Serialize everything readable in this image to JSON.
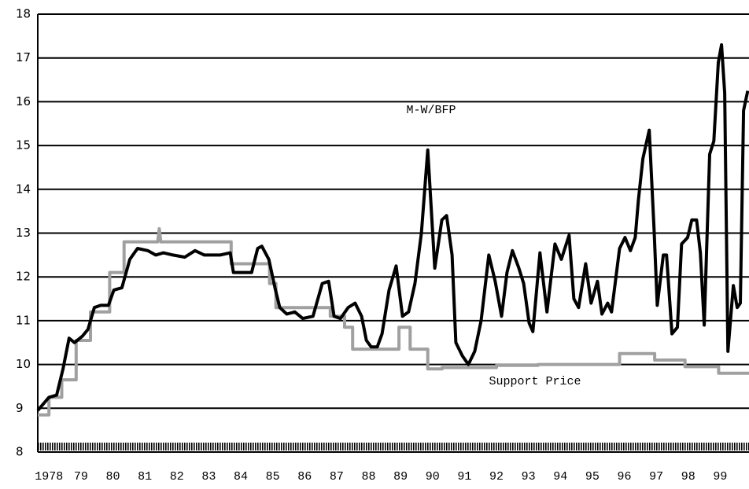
{
  "chart_data": {
    "type": "line",
    "xlim": [
      1977.65,
      1999.9
    ],
    "xticks": [
      {
        "value": 1978,
        "label": "1978"
      },
      {
        "value": 1979,
        "label": "79"
      },
      {
        "value": 1980,
        "label": "80"
      },
      {
        "value": 1981,
        "label": "81"
      },
      {
        "value": 1982,
        "label": "82"
      },
      {
        "value": 1983,
        "label": "83"
      },
      {
        "value": 1984,
        "label": "84"
      },
      {
        "value": 1985,
        "label": "85"
      },
      {
        "value": 1986,
        "label": "86"
      },
      {
        "value": 1987,
        "label": "87"
      },
      {
        "value": 1988,
        "label": "88"
      },
      {
        "value": 1989,
        "label": "89"
      },
      {
        "value": 1990,
        "label": "90"
      },
      {
        "value": 1991,
        "label": "91"
      },
      {
        "value": 1992,
        "label": "92"
      },
      {
        "value": 1993,
        "label": "93"
      },
      {
        "value": 1994,
        "label": "94"
      },
      {
        "value": 1995,
        "label": "95"
      },
      {
        "value": 1996,
        "label": "96"
      },
      {
        "value": 1997,
        "label": "97"
      },
      {
        "value": 1998,
        "label": "98"
      },
      {
        "value": 1999,
        "label": "99"
      }
    ],
    "ylim": [
      8,
      18
    ],
    "yticks": [
      8,
      9,
      10,
      11,
      12,
      13,
      14,
      15,
      16,
      17,
      18
    ],
    "grid": true,
    "series": [
      {
        "name": "Support Price",
        "color": "#a0a0a0",
        "x": [
          1977.65,
          1978.0,
          1978.0,
          1978.4,
          1978.4,
          1978.85,
          1978.85,
          1979.3,
          1979.3,
          1979.9,
          1979.9,
          1980.35,
          1980.35,
          1981.4,
          1981.45,
          1981.5,
          1983.7,
          1983.7,
          1984.9,
          1984.9,
          1985.1,
          1985.1,
          1986.8,
          1986.8,
          1987.25,
          1987.25,
          1987.5,
          1987.5,
          1988.95,
          1988.95,
          1989.3,
          1989.3,
          1989.85,
          1989.85,
          1990.3,
          1990.3,
          1992.0,
          1992.0,
          1993.3,
          1993.3,
          1995.85,
          1995.85,
          1996.95,
          1996.95,
          1997.9,
          1997.9,
          1998.95,
          1998.95,
          1999.9
        ],
        "values": [
          8.85,
          8.85,
          9.25,
          9.25,
          9.65,
          9.65,
          10.55,
          10.55,
          11.2,
          11.2,
          12.1,
          12.1,
          12.8,
          12.8,
          13.1,
          12.8,
          12.8,
          12.3,
          12.3,
          11.85,
          11.85,
          11.3,
          11.3,
          11.1,
          11.1,
          10.85,
          10.85,
          10.35,
          10.35,
          10.85,
          10.85,
          10.35,
          10.35,
          9.9,
          9.9,
          9.93,
          9.93,
          9.98,
          9.98,
          10.0,
          10.0,
          10.25,
          10.25,
          10.1,
          10.1,
          9.95,
          9.95,
          9.8,
          9.8
        ]
      },
      {
        "name": "M-W/BFP",
        "color": "#000000",
        "x": [
          1977.65,
          1978.0,
          1978.24,
          1978.44,
          1978.63,
          1978.8,
          1979.05,
          1979.22,
          1979.42,
          1979.62,
          1979.86,
          1980.03,
          1980.28,
          1980.53,
          1980.77,
          1981.09,
          1981.34,
          1981.58,
          1981.88,
          1982.25,
          1982.57,
          1982.86,
          1983.35,
          1983.67,
          1983.77,
          1984.09,
          1984.34,
          1984.53,
          1984.66,
          1984.88,
          1985.07,
          1985.22,
          1985.44,
          1985.69,
          1985.94,
          1986.26,
          1986.55,
          1986.75,
          1986.92,
          1987.12,
          1987.36,
          1987.58,
          1987.78,
          1987.93,
          1988.08,
          1988.27,
          1988.42,
          1988.64,
          1988.86,
          1989.06,
          1989.25,
          1989.45,
          1989.65,
          1989.85,
          1990.07,
          1990.29,
          1990.44,
          1990.61,
          1990.73,
          1990.93,
          1991.12,
          1991.32,
          1991.52,
          1991.76,
          1991.96,
          1992.16,
          1992.33,
          1992.5,
          1992.7,
          1992.85,
          1993.02,
          1993.14,
          1993.36,
          1993.58,
          1993.83,
          1994.03,
          1994.27,
          1994.42,
          1994.57,
          1994.79,
          1994.96,
          1995.16,
          1995.3,
          1995.48,
          1995.6,
          1995.85,
          1996.02,
          1996.19,
          1996.34,
          1996.44,
          1996.58,
          1996.78,
          1996.93,
          1997.03,
          1997.22,
          1997.32,
          1997.49,
          1997.66,
          1997.79,
          1997.98,
          1998.11,
          1998.26,
          1998.38,
          1998.5,
          1998.67,
          1998.8,
          1998.94,
          1999.04,
          1999.14,
          1999.24,
          1999.41,
          1999.53,
          1999.63,
          1999.73,
          1999.86
        ],
        "values": [
          8.95,
          9.25,
          9.3,
          9.9,
          10.6,
          10.5,
          10.65,
          10.8,
          11.3,
          11.35,
          11.35,
          11.7,
          11.75,
          12.4,
          12.65,
          12.6,
          12.5,
          12.55,
          12.5,
          12.45,
          12.6,
          12.5,
          12.5,
          12.55,
          12.1,
          12.1,
          12.1,
          12.65,
          12.7,
          12.4,
          11.75,
          11.3,
          11.15,
          11.2,
          11.05,
          11.1,
          11.85,
          11.9,
          11.1,
          11.05,
          11.3,
          11.4,
          11.1,
          10.55,
          10.4,
          10.4,
          10.7,
          11.7,
          12.25,
          11.1,
          11.2,
          11.85,
          13.0,
          14.9,
          12.2,
          13.3,
          13.4,
          12.5,
          10.5,
          10.2,
          10.0,
          10.3,
          11.0,
          12.5,
          11.9,
          11.1,
          12.1,
          12.6,
          12.2,
          11.85,
          10.95,
          10.75,
          12.55,
          11.2,
          12.75,
          12.4,
          12.95,
          11.5,
          11.3,
          12.3,
          11.4,
          11.9,
          11.15,
          11.4,
          11.2,
          12.65,
          12.9,
          12.6,
          12.9,
          13.75,
          14.7,
          15.35,
          13.1,
          11.35,
          12.5,
          12.5,
          10.7,
          10.85,
          12.75,
          12.9,
          13.3,
          13.3,
          12.55,
          10.9,
          14.8,
          15.1,
          16.9,
          17.3,
          16.2,
          10.3,
          11.8,
          11.3,
          11.4,
          15.8,
          16.25
        ]
      }
    ]
  }
}
